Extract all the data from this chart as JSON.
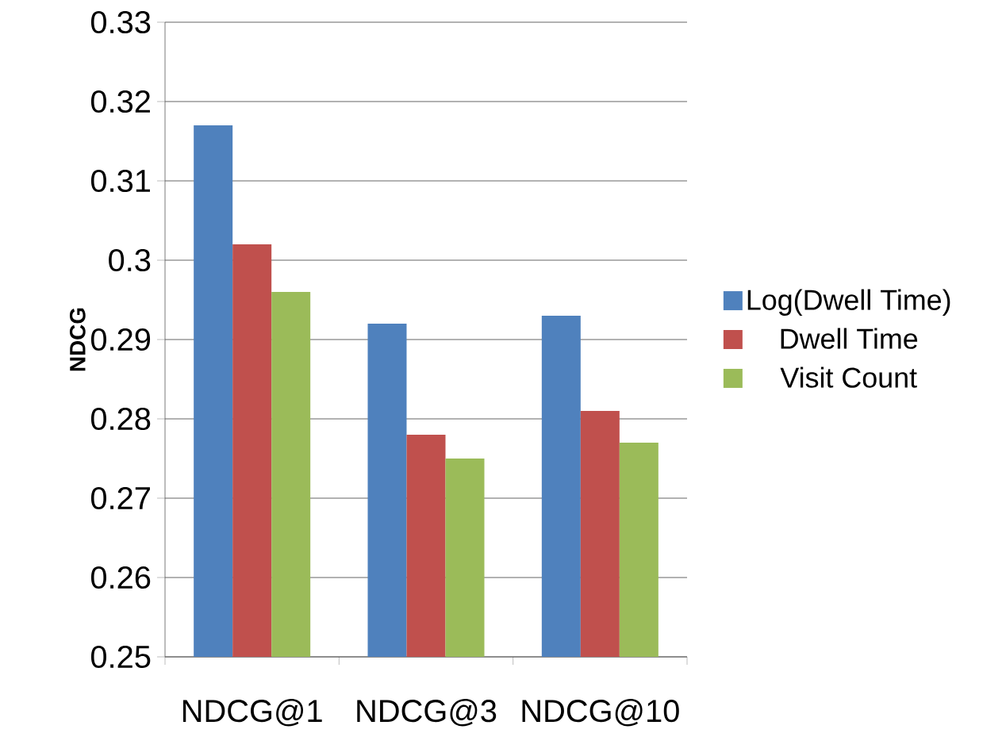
{
  "chart_data": {
    "type": "bar",
    "ylabel": "NDCG",
    "categories": [
      "NDCG@1",
      "NDCG@3",
      "NDCG@10"
    ],
    "series": [
      {
        "name": "Log(Dwell Time)",
        "color": "#4f81bd",
        "values": [
          0.317,
          0.292,
          0.293
        ]
      },
      {
        "name": "Dwell Time",
        "color": "#c0504d",
        "values": [
          0.302,
          0.278,
          0.281
        ]
      },
      {
        "name": "Visit Count",
        "color": "#9bbb59",
        "values": [
          0.296,
          0.275,
          0.277
        ]
      }
    ],
    "ylim": [
      0.25,
      0.33
    ],
    "yticks": [
      0.25,
      0.26,
      0.27,
      0.28,
      0.29,
      0.3,
      0.31,
      0.32,
      0.33
    ],
    "grid": "y",
    "legend": "right"
  }
}
